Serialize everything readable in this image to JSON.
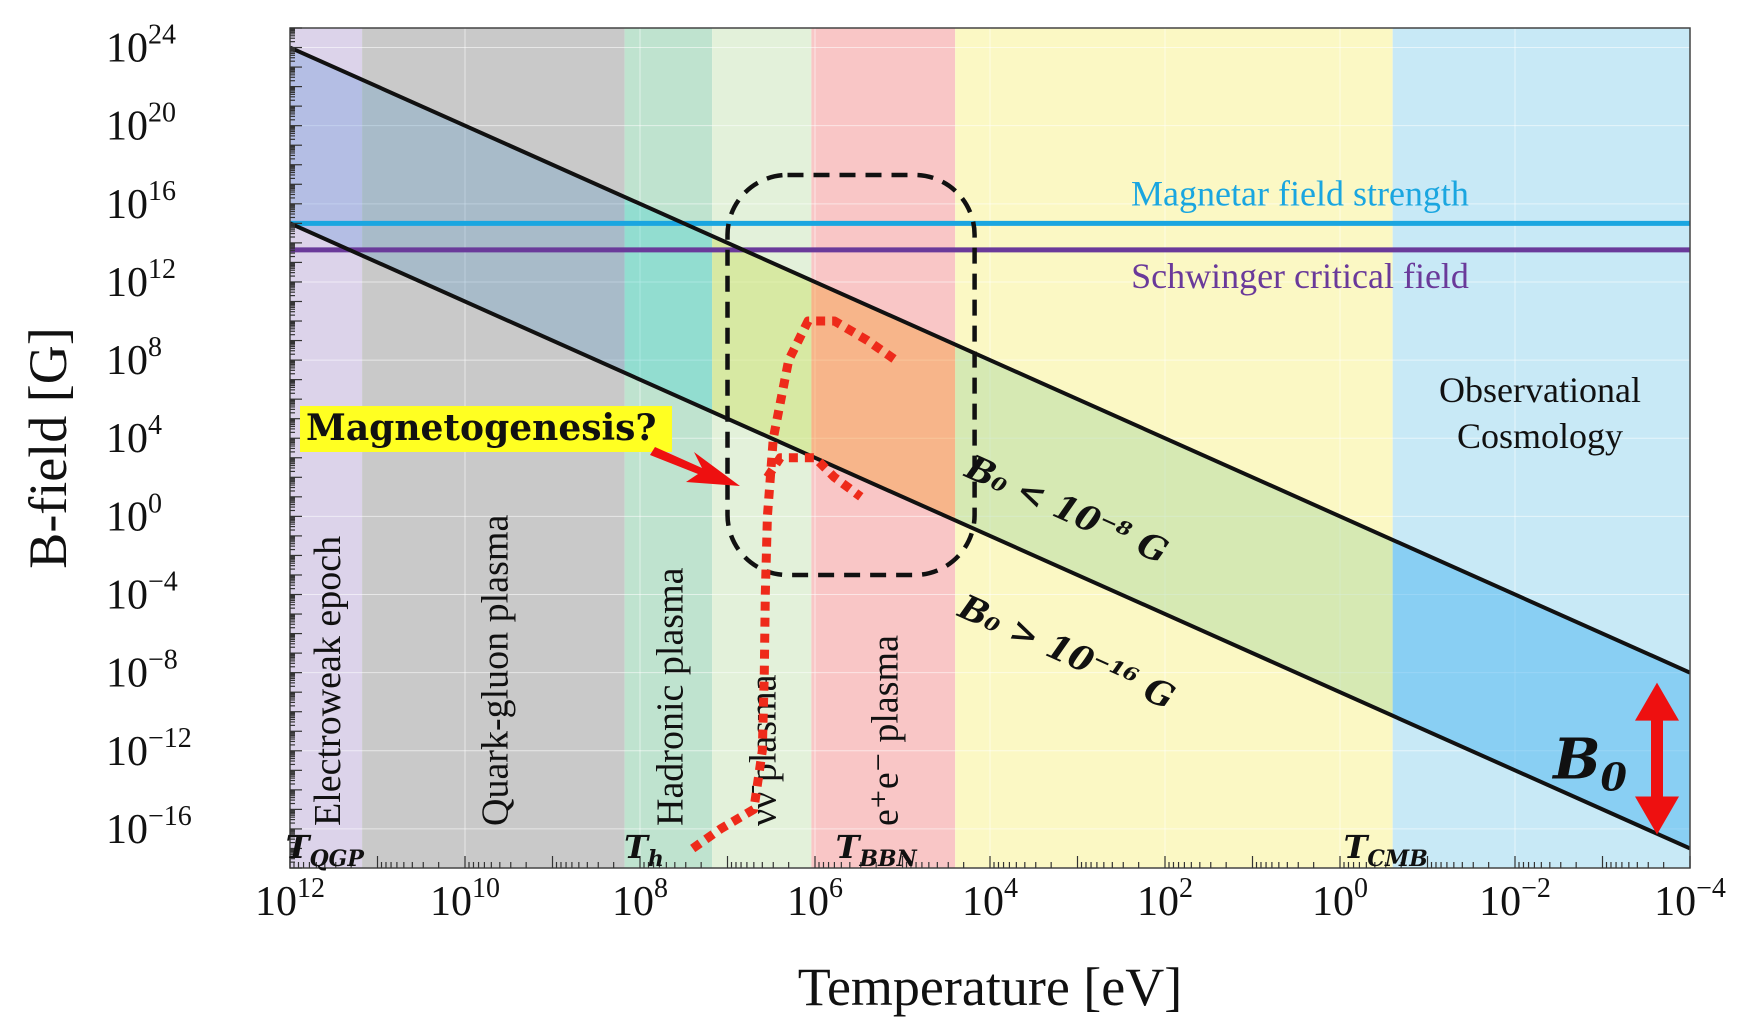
{
  "chart_data": {
    "type": "line",
    "xlabel": "Temperature [eV]",
    "ylabel": "B-field [G]",
    "x_scale": "log-reversed",
    "y_scale": "log",
    "xlim": [
      1000000000000.0,
      0.0001
    ],
    "ylim": [
      1e-18,
      1e+25
    ],
    "x_ticks": [
      {
        "value": 1000000000000.0,
        "base": "10",
        "exp": "12"
      },
      {
        "value": 10000000000.0,
        "base": "10",
        "exp": "10"
      },
      {
        "value": 100000000.0,
        "base": "10",
        "exp": "8"
      },
      {
        "value": 1000000.0,
        "base": "10",
        "exp": "6"
      },
      {
        "value": 10000.0,
        "base": "10",
        "exp": "4"
      },
      {
        "value": 100.0,
        "base": "10",
        "exp": "2"
      },
      {
        "value": 1,
        "base": "10",
        "exp": "0"
      },
      {
        "value": 0.01,
        "base": "10",
        "exp": "−2"
      },
      {
        "value": 0.0001,
        "base": "10",
        "exp": "−4"
      }
    ],
    "y_ticks": [
      {
        "value": 1e+24,
        "base": "10",
        "exp": "24"
      },
      {
        "value": 1e+20,
        "base": "10",
        "exp": "20"
      },
      {
        "value": 1e+16,
        "base": "10",
        "exp": "16"
      },
      {
        "value": 1000000000000.0,
        "base": "10",
        "exp": "12"
      },
      {
        "value": 100000000.0,
        "base": "10",
        "exp": "8"
      },
      {
        "value": 10000.0,
        "base": "10",
        "exp": "4"
      },
      {
        "value": 1,
        "base": "10",
        "exp": "0"
      },
      {
        "value": 0.0001,
        "base": "10",
        "exp": "−4"
      },
      {
        "value": 1e-08,
        "base": "10",
        "exp": "−8"
      },
      {
        "value": 1e-12,
        "base": "10",
        "exp": "−12"
      },
      {
        "value": 1e-16,
        "base": "10",
        "exp": "−16"
      }
    ],
    "eras": [
      {
        "label": "Electroweak epoch",
        "x_from": 1000000000000.0,
        "x_to": 150000000000.0,
        "color": "#dcd3ea"
      },
      {
        "label": "Quark-gluon plasma",
        "x_from": 150000000000.0,
        "x_to": 150000000.0,
        "color": "#c9c9c9"
      },
      {
        "label": "Hadronic plasma",
        "x_from": 150000000.0,
        "x_to": 15000000.0,
        "color": "#bfe3cf"
      },
      {
        "label": "νν̄ plasma",
        "x_from": 15000000.0,
        "x_to": 1100000.0,
        "color": "#e3f1da"
      },
      {
        "label": "e⁺e⁻ plasma",
        "x_from": 1100000.0,
        "x_to": 25000.0,
        "color": "#f9c6c6"
      },
      {
        "label": "",
        "x_from": 25000.0,
        "x_to": 0.25,
        "color": "#fbf8c4"
      },
      {
        "label": "",
        "x_from": 0.25,
        "x_to": 0.0001,
        "color": "#c8e9f6"
      }
    ],
    "bands": [
      {
        "x_from": 1000000000000.0,
        "x_to": 150000000000.0,
        "color": "#5b8fd8",
        "opacity": 0.3
      },
      {
        "x_from": 150000000000.0,
        "x_to": 150000000.0,
        "color": "#6aa0c8",
        "opacity": 0.35
      },
      {
        "x_from": 150000000.0,
        "x_to": 15000000.0,
        "color": "#3fd0d0",
        "opacity": 0.35
      },
      {
        "x_from": 15000000.0,
        "x_to": 1100000.0,
        "color": "#c8e060",
        "opacity": 0.45
      },
      {
        "x_from": 1100000.0,
        "x_to": 25000.0,
        "color": "#f5a040",
        "opacity": 0.45
      },
      {
        "x_from": 25000.0,
        "x_to": 0.25,
        "color": "#a8d8a0",
        "opacity": 0.45
      },
      {
        "x_from": 0.25,
        "x_to": 0.0001,
        "color": "#3cb0f0",
        "opacity": 0.45
      }
    ],
    "series": [
      {
        "name": "",
        "x": [
          1000000000000.0,
          0.0001
        ],
        "y": [
          1e+24,
          1e-08
        ],
        "color": "#111111"
      },
      {
        "name": "",
        "x": [
          1000000000000.0,
          0.0001
        ],
        "y": [
          1000000000000000.0,
          1e-17
        ],
        "color": "#111111"
      }
    ],
    "hlines": [
      {
        "label": "Magnetar field strength",
        "y": 1000000000000000.0,
        "color": "#1aa6e0"
      },
      {
        "label": "Schwinger critical field",
        "y": 44000000000000.0,
        "color": "#6a3a9a"
      }
    ],
    "temperature_markers": [
      {
        "base": "T",
        "sub": "QGP",
        "x": 400000000000.0
      },
      {
        "base": "T",
        "sub": "h",
        "x": 90000000.0
      },
      {
        "base": "T",
        "sub": "BBN",
        "x": 200000.0
      },
      {
        "base": "T",
        "sub": "CMB",
        "x": 0.3
      }
    ],
    "bound_labels": [
      {
        "text": "B₀ < 10⁻⁸ G",
        "x": 1500.0,
        "y": 0.1
      },
      {
        "text": "B₀ > 10⁻¹⁶ G",
        "x": 1500.0,
        "y": 1e-08
      }
    ],
    "region_box": {
      "x_from": 10000000.0,
      "x_to": 15000.0,
      "y_from": 0.001,
      "y_to": 3e+17
    },
    "dotted_curves": [
      {
        "x": [
          25000000.0,
          12000000.0,
          5000000.0,
          4000000.0,
          3800000.0,
          3700000.0,
          3500000.0,
          3000000.0,
          2000000.0,
          1200000.0,
          600000.0,
          250000.0,
          120000.0
        ],
        "y": [
          1e-17,
          1e-16,
          1e-15,
          1e-12,
          1e-08,
          0.0001,
          1,
          10000.0,
          100000000.0,
          10000000000.0,
          10000000000.0,
          1000000000.0,
          100000000.0
        ]
      },
      {
        "x": [
          3500000.0,
          2500000.0,
          1800000.0,
          1000000.0,
          600000.0,
          300000.0
        ],
        "y": [
          100.0,
          1000.0,
          1000.0,
          1000.0,
          100.0,
          10.0
        ]
      }
    ],
    "annotations": {
      "magnetogenesis": "Magnetogenesis?",
      "observational": [
        "Observational",
        "Cosmology"
      ],
      "b0": {
        "base": "B",
        "sub": "0"
      }
    },
    "colors": {
      "magnetar": "#1aa6e0",
      "schwinger": "#6a3a9a",
      "dotted": "#ee2a1a",
      "arrow": "#ee1010",
      "highlight": "#ffff22"
    }
  }
}
